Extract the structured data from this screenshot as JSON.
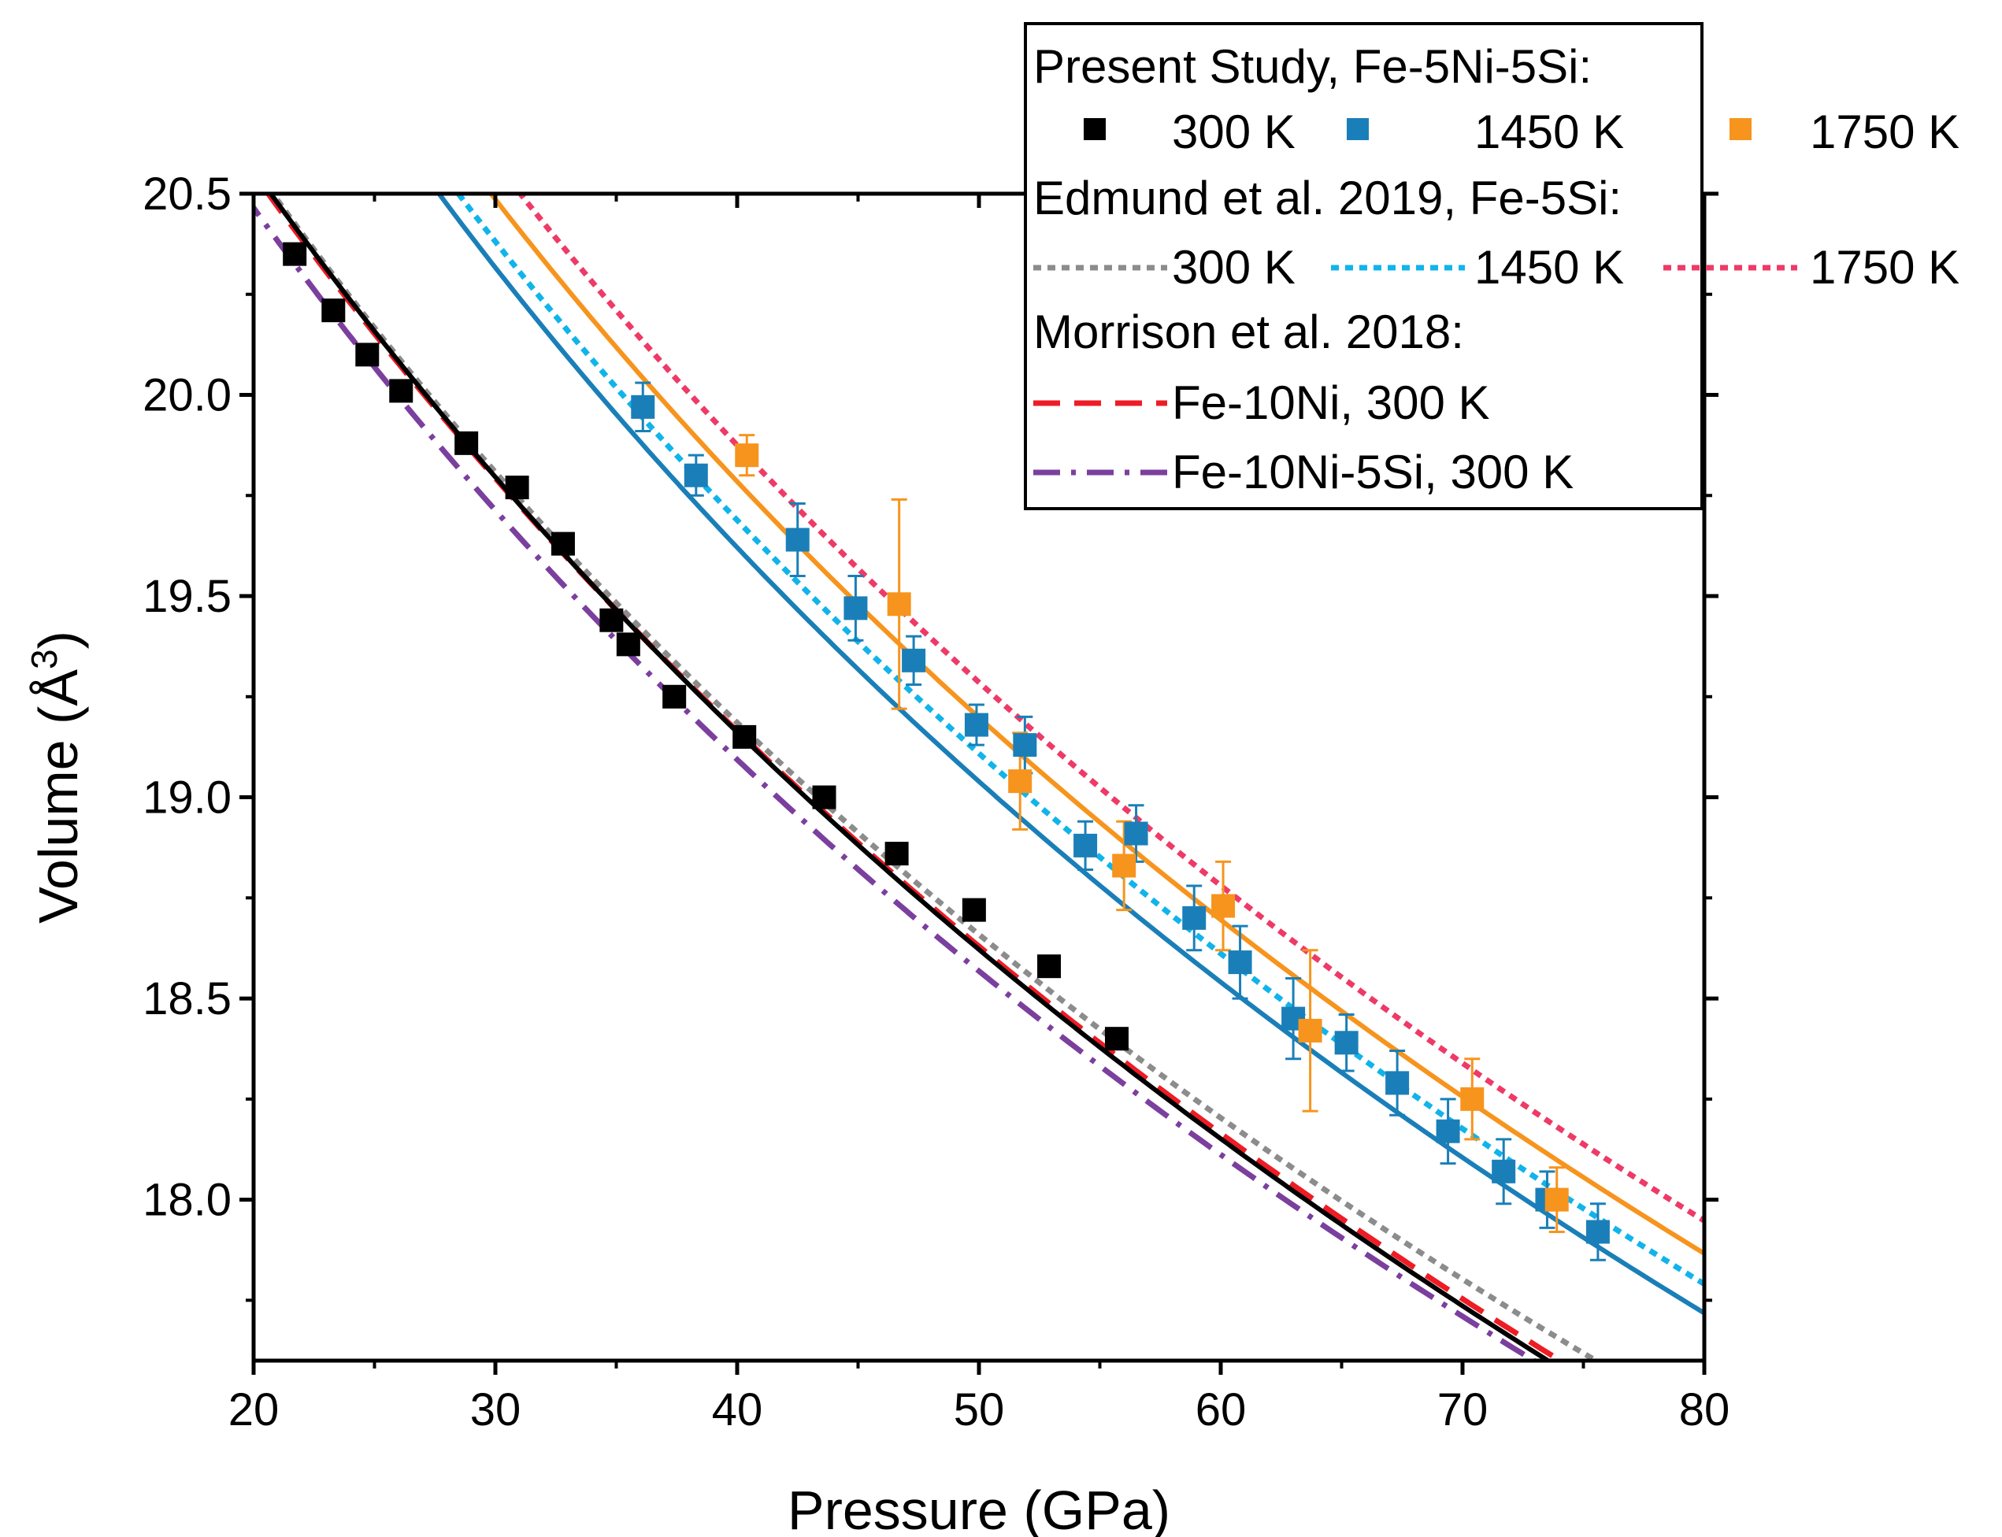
{
  "chart_data": {
    "type": "scatter",
    "xlabel": "Pressure (GPa)",
    "ylabel_main": "Volume (Å",
    "ylabel_sup": "3",
    "ylabel_close": ")",
    "xlim": [
      20,
      80
    ],
    "ylim": [
      17.6,
      20.5
    ],
    "xticks": [
      20,
      30,
      40,
      50,
      60,
      70,
      80
    ],
    "xtick_labels": [
      "20",
      "30",
      "40",
      "50",
      "60",
      "70",
      "80"
    ],
    "yticks": [
      18.0,
      18.5,
      19.0,
      19.5,
      20.0,
      20.5
    ],
    "ytick_labels": [
      "18.0",
      "18.5",
      "19.0",
      "19.5",
      "20.0",
      "20.5"
    ],
    "legend": {
      "heading_present": "Present Study, Fe-5Ni-5Si:",
      "heading_edmund": "Edmund et al. 2019, Fe-5Si:",
      "heading_morrison": "Morrison et al. 2018:",
      "present_labels": [
        "300 K",
        "1450 K",
        "1750 K"
      ],
      "edmund_labels": [
        "300 K",
        "1450 K",
        "1750 K"
      ],
      "morrison_labels": [
        "Fe-10Ni, 300 K",
        "Fe-10Ni-5Si, 300 K"
      ]
    },
    "colors": {
      "k300": "#000000",
      "k1450": "#1a7fb8",
      "k1750": "#f7941d",
      "e300": "#8c8c8c",
      "e1450": "#11b4ea",
      "e1750": "#ee3a67",
      "m_feni": "#ee1c25",
      "m_fenisi": "#7b3f9e"
    },
    "series": [
      {
        "name": "300 K",
        "color": "#000000",
        "x": [
          21.7,
          23.3,
          24.7,
          26.1,
          28.8,
          30.9,
          32.8,
          34.8,
          35.5,
          37.4,
          40.3,
          43.6,
          46.6,
          49.8,
          52.9,
          55.7
        ],
        "y": [
          20.35,
          20.21,
          20.1,
          20.01,
          19.88,
          19.77,
          19.63,
          19.44,
          19.38,
          19.25,
          19.15,
          19.0,
          18.86,
          18.72,
          18.58,
          18.4
        ],
        "err": [
          0,
          0,
          0,
          0,
          0,
          0,
          0,
          0,
          0,
          0,
          0,
          0,
          0,
          0,
          0,
          0
        ]
      },
      {
        "name": "1450 K",
        "color": "#1a7fb8",
        "x": [
          36.1,
          38.3,
          42.5,
          44.9,
          47.3,
          49.9,
          51.9,
          54.4,
          56.5,
          58.9,
          60.8,
          63.0,
          65.2,
          67.3,
          69.4,
          71.7,
          73.5,
          75.6
        ],
        "y": [
          19.97,
          19.8,
          19.64,
          19.47,
          19.34,
          19.18,
          19.13,
          18.88,
          18.91,
          18.7,
          18.59,
          18.45,
          18.39,
          18.29,
          18.17,
          18.07,
          18.0,
          17.92
        ],
        "err": [
          0.06,
          0.05,
          0.09,
          0.08,
          0.06,
          0.05,
          0.07,
          0.06,
          0.07,
          0.08,
          0.09,
          0.1,
          0.07,
          0.08,
          0.08,
          0.08,
          0.07,
          0.07
        ]
      },
      {
        "name": "1750 K",
        "color": "#f7941d",
        "x": [
          40.4,
          46.7,
          51.7,
          56.0,
          60.1,
          63.7,
          70.4,
          73.9
        ],
        "y": [
          19.85,
          19.48,
          19.04,
          18.83,
          18.73,
          18.42,
          18.25,
          18.0
        ],
        "err": [
          0.05,
          0.26,
          0.12,
          0.11,
          0.11,
          0.2,
          0.1,
          0.08
        ]
      }
    ],
    "curves": [
      {
        "name": "Edmund 300 K",
        "color": "#8c8c8c",
        "dash": "dot",
        "V0": 22.88,
        "K0": 140,
        "K1": 5.5
      },
      {
        "name": "Edmund 1450 K",
        "color": "#11b4ea",
        "dash": "dot",
        "V0": 23.98,
        "K0": 118,
        "K1": 5.5
      },
      {
        "name": "Edmund 1750 K",
        "color": "#ee3a67",
        "dash": "dot",
        "V0": 24.26,
        "K0": 116,
        "K1": 5.5
      },
      {
        "name": "Fe-10Ni, 300 K",
        "color": "#ee1c25",
        "dash": "dash",
        "V0": 22.78,
        "K0": 150,
        "K1": 5.0
      },
      {
        "name": "Fe-10Ni-5Si, 300 K",
        "color": "#7b3f9e",
        "dash": "dashdot",
        "V0": 22.72,
        "K0": 145,
        "K1": 5.3
      },
      {
        "name": "Fit 300 K",
        "color": "#000000",
        "dash": "solid",
        "V0": 22.8,
        "K0": 150,
        "K1": 4.9
      },
      {
        "name": "Fit 1450 K",
        "color": "#1a7fb8",
        "dash": "solid",
        "V0": 23.95,
        "K0": 116,
        "K1": 5.5
      },
      {
        "name": "Fit 1750 K",
        "color": "#f7941d",
        "dash": "solid",
        "V0": 24.15,
        "K0": 116,
        "K1": 5.5
      }
    ]
  }
}
